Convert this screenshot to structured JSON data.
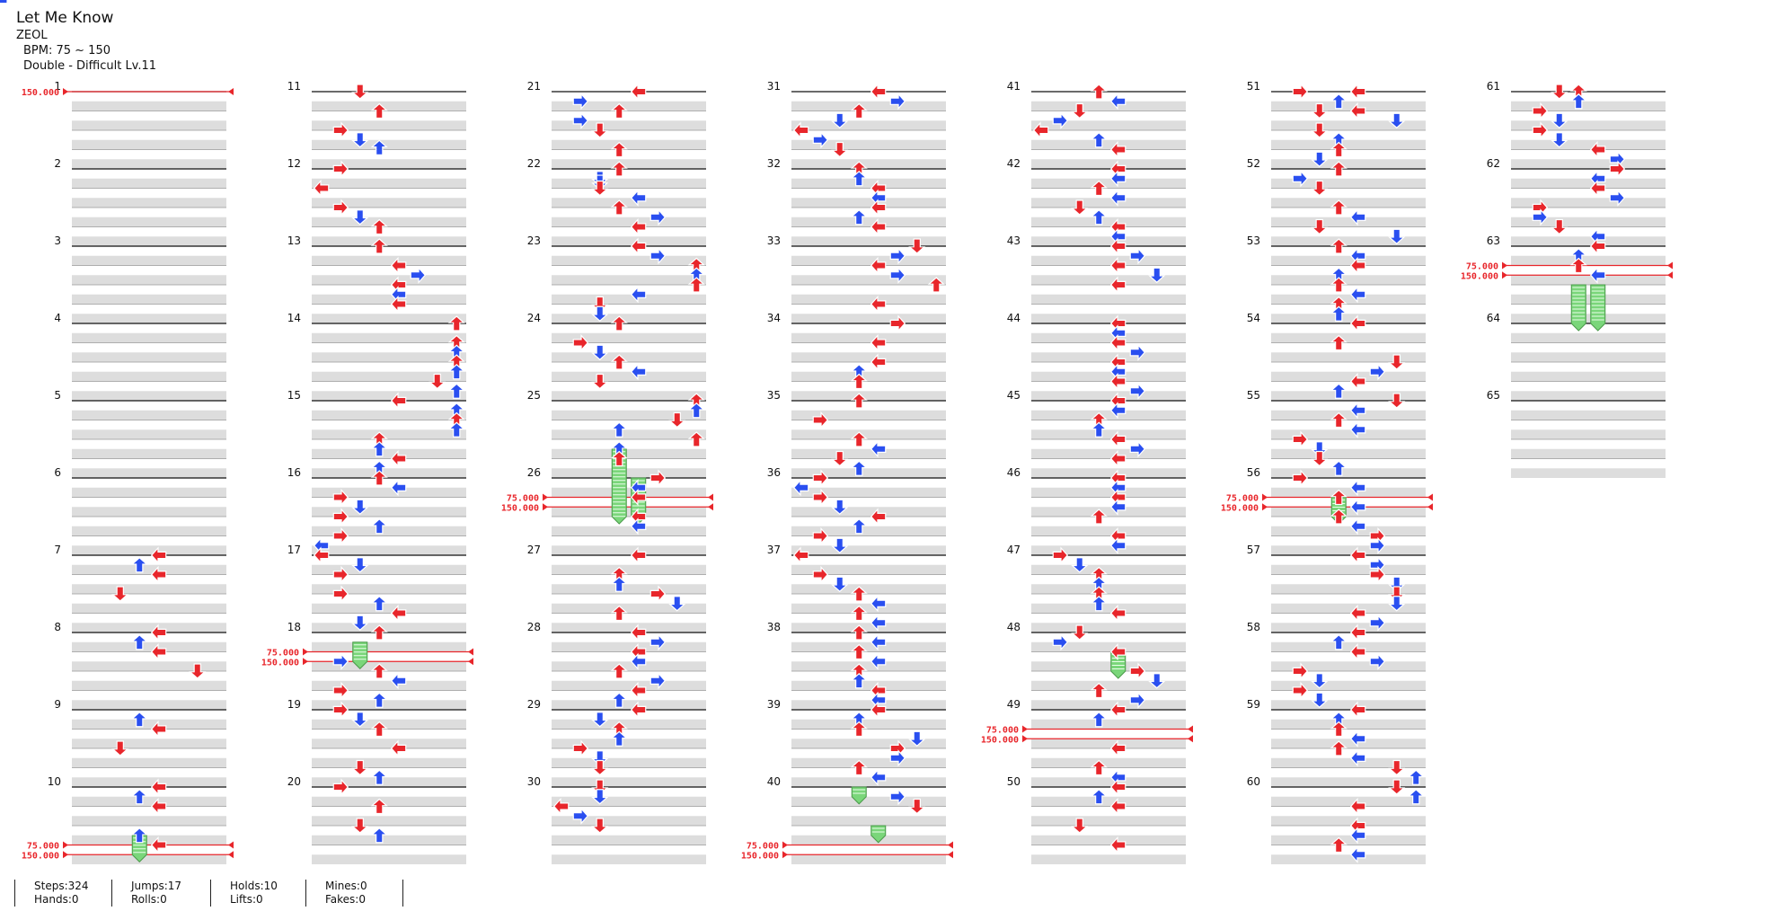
{
  "song": {
    "title": "Let Me Know",
    "artist": "ZEOL",
    "bpm": "BPM: 75 ~ 150",
    "difficulty": "Double - Difficult  Lv.11"
  },
  "stats": {
    "steps": "Steps:324",
    "jumps": "Jumps:17",
    "holds": "Holds:10",
    "mines": "Mines:0",
    "hands": "Hands:0",
    "rolls": "Rolls:0",
    "lifts": "Lifts:0",
    "fakes": "Fakes:0"
  },
  "chart": {
    "measures_per_column": 10,
    "total_measures": 65,
    "lanes": 8,
    "colors": {
      "quarter": "#e8262b",
      "eighth": "#2a4ff0",
      "hold": "#7ad67a",
      "stripe": "#dddddd",
      "measure_line": "#111111",
      "beat_line": "#999999",
      "bpm_line": "#e8262b"
    },
    "measure_labels": [
      "1",
      "2",
      "3",
      "4",
      "5",
      "6",
      "7",
      "8",
      "9",
      "10",
      "11",
      "12",
      "13",
      "14",
      "15",
      "16",
      "17",
      "18",
      "19",
      "20",
      "21",
      "22",
      "23",
      "24",
      "25",
      "26",
      "27",
      "28",
      "29",
      "30",
      "31",
      "32",
      "33",
      "34",
      "35",
      "36",
      "37",
      "38",
      "39",
      "40",
      "41",
      "42",
      "43",
      "44",
      "45",
      "46",
      "47",
      "48",
      "49",
      "50",
      "51",
      "52",
      "53",
      "54",
      "55",
      "56",
      "57",
      "58",
      "59",
      "60",
      "61",
      "62",
      "63",
      "64",
      "65"
    ],
    "bpm_changes": [
      {
        "beat": 0,
        "label": "150.000"
      },
      {
        "beat": 39,
        "label": "75.000"
      },
      {
        "beat": 39.5,
        "label": "150.000"
      },
      {
        "beat": 69,
        "label": "75.000"
      },
      {
        "beat": 69.5,
        "label": "150.000"
      },
      {
        "beat": 101,
        "label": "75.000"
      },
      {
        "beat": 101.5,
        "label": "150.000"
      },
      {
        "beat": 159,
        "label": "75.000"
      },
      {
        "beat": 159.5,
        "label": "150.000"
      },
      {
        "beat": 193,
        "label": "75.000"
      },
      {
        "beat": 193.5,
        "label": "150.000"
      },
      {
        "beat": 221,
        "label": "75.000"
      },
      {
        "beat": 221.5,
        "label": "150.000"
      },
      {
        "beat": 249,
        "label": "75.000"
      },
      {
        "beat": 249.5,
        "label": "150.000"
      }
    ],
    "holds": [
      {
        "beat": 38.5,
        "end": 39.5,
        "lane": 3
      },
      {
        "beat": 68.5,
        "end": 69.5,
        "lane": 2
      },
      {
        "beat": 98.5,
        "end": 102,
        "lane": 3
      },
      {
        "beat": 100,
        "end": 102,
        "lane": 4
      },
      {
        "beat": 156,
        "end": 156.5,
        "lane": 3
      },
      {
        "beat": 158,
        "end": 158.5,
        "lane": 4
      },
      {
        "beat": 189,
        "end": 190,
        "lane": 4
      },
      {
        "beat": 221,
        "end": 222,
        "lane": 3
      },
      {
        "beat": 250,
        "end": 252,
        "lane": 3
      },
      {
        "beat": 250,
        "end": 252,
        "lane": 4
      }
    ],
    "notes": [
      [
        24,
        4
      ],
      [
        24.5,
        3
      ],
      [
        25,
        4
      ],
      [
        26,
        2
      ],
      [
        28,
        4
      ],
      [
        28.5,
        3
      ],
      [
        29,
        4
      ],
      [
        30,
        6
      ],
      [
        32.5,
        3
      ],
      [
        33,
        4
      ],
      [
        34,
        2
      ],
      [
        36,
        4
      ],
      [
        36.5,
        3
      ],
      [
        37,
        4
      ],
      [
        38.5,
        3
      ],
      [
        39,
        4
      ],
      [
        40,
        2
      ],
      [
        41,
        3
      ],
      [
        42,
        1
      ],
      [
        42.5,
        2
      ],
      [
        42.9,
        3
      ],
      [
        44,
        1
      ],
      [
        45,
        0
      ],
      [
        46,
        1
      ],
      [
        46.5,
        2
      ],
      [
        47,
        3
      ],
      [
        48,
        3
      ],
      [
        49,
        4
      ],
      [
        49.5,
        5
      ],
      [
        50,
        4
      ],
      [
        50.5,
        4
      ],
      [
        51,
        4
      ],
      [
        52,
        7
      ],
      [
        52.5,
        8
      ],
      [
        53,
        7
      ],
      [
        53.5,
        7
      ],
      [
        54,
        7
      ],
      [
        54.5,
        7
      ],
      [
        55,
        6
      ],
      [
        55.5,
        7
      ],
      [
        56,
        4
      ],
      [
        56.5,
        7
      ],
      [
        57,
        7
      ],
      [
        57.5,
        7
      ],
      [
        58,
        3
      ],
      [
        58.5,
        3
      ],
      [
        59,
        4
      ],
      [
        59.5,
        3
      ],
      [
        60,
        3
      ],
      [
        60.5,
        4
      ],
      [
        61,
        1
      ],
      [
        61.5,
        2
      ],
      [
        62,
        1
      ],
      [
        62.5,
        3
      ],
      [
        63,
        1
      ],
      [
        63.5,
        0
      ],
      [
        64,
        0
      ],
      [
        64.5,
        2
      ],
      [
        65,
        1
      ],
      [
        66,
        1
      ],
      [
        66.5,
        3
      ],
      [
        67,
        4
      ],
      [
        67.5,
        2
      ],
      [
        68,
        3
      ],
      [
        69.5,
        1
      ],
      [
        70,
        3
      ],
      [
        70.5,
        4
      ],
      [
        71,
        1
      ],
      [
        71.5,
        3
      ],
      [
        72,
        1
      ],
      [
        72.5,
        2
      ],
      [
        73,
        3
      ],
      [
        74,
        4
      ],
      [
        75,
        2
      ],
      [
        75.5,
        3
      ],
      [
        76,
        1
      ],
      [
        77,
        3
      ],
      [
        78,
        2
      ],
      [
        78.5,
        3
      ],
      [
        80,
        4
      ],
      [
        80.5,
        1
      ],
      [
        81,
        3
      ],
      [
        81.5,
        1
      ],
      [
        82,
        2
      ],
      [
        83,
        3
      ],
      [
        84,
        3
      ],
      [
        84.5,
        2
      ],
      [
        84.7,
        2
      ],
      [
        85,
        2
      ],
      [
        85.5,
        4
      ],
      [
        86,
        3
      ],
      [
        86.5,
        5
      ],
      [
        87,
        4
      ],
      [
        88,
        4
      ],
      [
        88.5,
        5
      ],
      [
        89,
        7
      ],
      [
        89.5,
        7
      ],
      [
        90,
        7
      ],
      [
        90.5,
        4
      ],
      [
        91,
        2
      ],
      [
        91.5,
        2
      ],
      [
        92,
        3
      ],
      [
        93,
        1
      ],
      [
        93.5,
        2
      ],
      [
        94,
        3
      ],
      [
        94.5,
        4
      ],
      [
        95,
        2
      ],
      [
        96,
        7
      ],
      [
        96.5,
        7
      ],
      [
        97,
        6
      ],
      [
        97.5,
        3
      ],
      [
        98,
        7
      ],
      [
        98.5,
        3
      ],
      [
        99,
        3
      ],
      [
        100,
        5
      ],
      [
        100.5,
        4
      ],
      [
        101,
        4
      ],
      [
        102,
        4
      ],
      [
        102.5,
        4
      ],
      [
        104,
        4
      ],
      [
        105,
        3
      ],
      [
        105.5,
        3
      ],
      [
        106,
        5
      ],
      [
        106.5,
        6
      ],
      [
        107,
        3
      ],
      [
        108,
        4
      ],
      [
        108.5,
        5
      ],
      [
        109,
        4
      ],
      [
        109.5,
        4
      ],
      [
        110,
        3
      ],
      [
        110.5,
        5
      ],
      [
        111,
        4
      ],
      [
        111.5,
        3
      ],
      [
        112,
        4
      ],
      [
        112.5,
        2
      ],
      [
        113,
        3
      ],
      [
        113.5,
        3
      ],
      [
        114,
        1
      ],
      [
        114.5,
        2
      ],
      [
        115,
        2
      ],
      [
        116,
        2
      ],
      [
        116.5,
        2
      ],
      [
        117,
        0
      ],
      [
        117.5,
        1
      ],
      [
        118,
        2
      ],
      [
        120,
        4
      ],
      [
        120.5,
        5
      ],
      [
        121,
        3
      ],
      [
        121.5,
        2
      ],
      [
        122,
        0
      ],
      [
        122.5,
        1
      ],
      [
        123,
        2
      ],
      [
        124,
        3
      ],
      [
        124.5,
        3
      ],
      [
        125,
        4
      ],
      [
        125.5,
        4
      ],
      [
        126,
        4
      ],
      [
        126.5,
        3
      ],
      [
        127,
        4
      ],
      [
        128,
        6
      ],
      [
        128.5,
        5
      ],
      [
        129,
        4
      ],
      [
        129.5,
        5
      ],
      [
        130,
        7
      ],
      [
        131,
        4
      ],
      [
        132,
        5
      ],
      [
        133,
        4
      ],
      [
        134,
        4
      ],
      [
        134.5,
        3
      ],
      [
        135,
        3
      ],
      [
        136,
        3
      ],
      [
        137,
        1
      ],
      [
        138,
        3
      ],
      [
        138.5,
        4
      ],
      [
        139,
        2
      ],
      [
        139.5,
        3
      ],
      [
        140,
        1
      ],
      [
        140.5,
        0
      ],
      [
        141,
        1
      ],
      [
        141.5,
        2
      ],
      [
        142,
        4
      ],
      [
        142.5,
        3
      ],
      [
        143,
        1
      ],
      [
        143.5,
        2
      ],
      [
        144,
        0
      ],
      [
        145,
        1
      ],
      [
        145.5,
        2
      ],
      [
        146,
        3
      ],
      [
        146.5,
        4
      ],
      [
        147,
        3
      ],
      [
        147.5,
        4
      ],
      [
        148,
        3
      ],
      [
        148.5,
        4
      ],
      [
        149,
        3
      ],
      [
        149.5,
        4
      ],
      [
        150,
        3
      ],
      [
        150.5,
        3
      ],
      [
        151,
        4
      ],
      [
        151.5,
        4
      ],
      [
        152,
        4
      ],
      [
        152.5,
        3
      ],
      [
        153,
        3
      ],
      [
        153.5,
        6
      ],
      [
        154,
        5
      ],
      [
        154.5,
        5
      ],
      [
        155,
        3
      ],
      [
        155.5,
        4
      ],
      [
        156.5,
        5
      ],
      [
        157,
        6
      ],
      [
        160,
        3
      ],
      [
        160.5,
        4
      ],
      [
        161,
        2
      ],
      [
        161.5,
        1
      ],
      [
        162,
        0
      ],
      [
        162.5,
        3
      ],
      [
        163,
        4
      ],
      [
        164,
        4
      ],
      [
        164.5,
        4
      ],
      [
        165,
        3
      ],
      [
        165.5,
        4
      ],
      [
        166,
        2
      ],
      [
        166.5,
        3
      ],
      [
        167,
        4
      ],
      [
        167.5,
        4
      ],
      [
        168,
        4
      ],
      [
        168.5,
        5
      ],
      [
        169,
        4
      ],
      [
        169.5,
        6
      ],
      [
        170,
        4
      ],
      [
        172,
        4
      ],
      [
        172.5,
        4
      ],
      [
        173,
        4
      ],
      [
        173.5,
        5
      ],
      [
        174,
        4
      ],
      [
        174.5,
        4
      ],
      [
        175,
        4
      ],
      [
        175.5,
        5
      ],
      [
        176,
        4
      ],
      [
        176.5,
        4
      ],
      [
        177,
        3
      ],
      [
        177.5,
        3
      ],
      [
        178,
        4
      ],
      [
        178.5,
        5
      ],
      [
        179,
        4
      ],
      [
        180,
        4
      ],
      [
        180.5,
        4
      ],
      [
        181,
        4
      ],
      [
        181.5,
        4
      ],
      [
        182,
        3
      ],
      [
        183,
        4
      ],
      [
        183.5,
        4
      ],
      [
        184,
        1
      ],
      [
        184.5,
        2
      ],
      [
        185,
        3
      ],
      [
        185.5,
        3
      ],
      [
        186,
        3
      ],
      [
        186.5,
        3
      ],
      [
        187,
        4
      ],
      [
        188,
        2
      ],
      [
        188.5,
        1
      ],
      [
        189,
        4
      ],
      [
        190,
        5
      ],
      [
        190.5,
        6
      ],
      [
        191,
        3
      ],
      [
        191.5,
        5
      ],
      [
        192,
        4
      ],
      [
        192.5,
        3
      ],
      [
        194,
        4
      ],
      [
        195,
        3
      ],
      [
        195.5,
        4
      ],
      [
        196,
        4
      ],
      [
        196.5,
        3
      ],
      [
        197,
        4
      ],
      [
        198,
        2
      ],
      [
        199,
        4
      ],
      [
        200,
        4
      ],
      [
        200.5,
        3
      ],
      [
        201,
        4
      ],
      [
        201.5,
        6
      ],
      [
        202,
        2
      ],
      [
        202.5,
        3
      ],
      [
        200,
        1
      ],
      [
        201,
        2
      ],
      [
        202.5,
        3
      ],
      [
        203,
        3
      ],
      [
        203.5,
        2
      ],
      [
        204,
        3
      ],
      [
        204.5,
        1
      ],
      [
        205,
        2
      ],
      [
        206,
        3
      ],
      [
        206.5,
        4
      ],
      [
        207,
        2
      ],
      [
        207.5,
        6
      ],
      [
        208,
        3
      ],
      [
        208.5,
        4
      ],
      [
        209,
        4
      ],
      [
        209.5,
        3
      ],
      [
        210,
        3
      ],
      [
        210.5,
        4
      ],
      [
        211,
        3
      ],
      [
        211.5,
        3
      ],
      [
        212,
        4
      ],
      [
        213,
        3
      ],
      [
        214,
        6
      ],
      [
        214.5,
        5
      ],
      [
        215,
        4
      ],
      [
        215.5,
        3
      ],
      [
        216,
        6
      ],
      [
        216.5,
        4
      ],
      [
        217,
        3
      ],
      [
        217.5,
        4
      ],
      [
        218,
        1
      ],
      [
        218.5,
        2
      ],
      [
        219,
        2
      ],
      [
        219.5,
        3
      ],
      [
        220,
        1
      ],
      [
        220.5,
        4
      ],
      [
        221,
        3
      ],
      [
        221.5,
        4
      ],
      [
        222,
        3
      ],
      [
        222.5,
        4
      ],
      [
        223,
        5
      ],
      [
        223.5,
        5
      ],
      [
        224,
        4
      ],
      [
        224.5,
        5
      ],
      [
        225,
        5
      ],
      [
        225.5,
        6
      ],
      [
        226,
        6
      ],
      [
        226.5,
        6
      ],
      [
        227,
        4
      ],
      [
        227.5,
        5
      ],
      [
        228,
        4
      ],
      [
        228.5,
        3
      ],
      [
        229,
        4
      ],
      [
        229.5,
        5
      ],
      [
        230,
        1
      ],
      [
        230.5,
        2
      ],
      [
        231,
        1
      ],
      [
        231.5,
        2
      ],
      [
        232,
        4
      ],
      [
        232.5,
        3
      ],
      [
        233,
        3
      ],
      [
        233.5,
        4
      ],
      [
        234,
        3
      ],
      [
        234.5,
        4
      ],
      [
        235,
        6
      ],
      [
        235.5,
        7
      ],
      [
        236,
        6
      ],
      [
        236.5,
        7
      ],
      [
        237,
        4
      ],
      [
        238,
        4
      ],
      [
        238.5,
        4
      ],
      [
        239,
        3
      ],
      [
        239.5,
        4
      ],
      [
        240,
        3
      ],
      [
        240.5,
        3
      ],
      [
        240,
        2
      ],
      [
        240.5,
        3
      ],
      [
        241,
        1
      ],
      [
        241.5,
        2
      ],
      [
        242,
        1
      ],
      [
        242.5,
        2
      ],
      [
        243,
        4
      ],
      [
        243.5,
        5
      ],
      [
        244,
        5
      ],
      [
        244.5,
        4
      ],
      [
        245,
        4
      ],
      [
        245.5,
        5
      ],
      [
        246,
        1
      ],
      [
        246.5,
        1
      ],
      [
        247,
        2
      ],
      [
        247.5,
        4
      ],
      [
        248,
        4
      ],
      [
        248.5,
        3
      ],
      [
        249,
        3
      ],
      [
        249.5,
        4
      ]
    ]
  }
}
